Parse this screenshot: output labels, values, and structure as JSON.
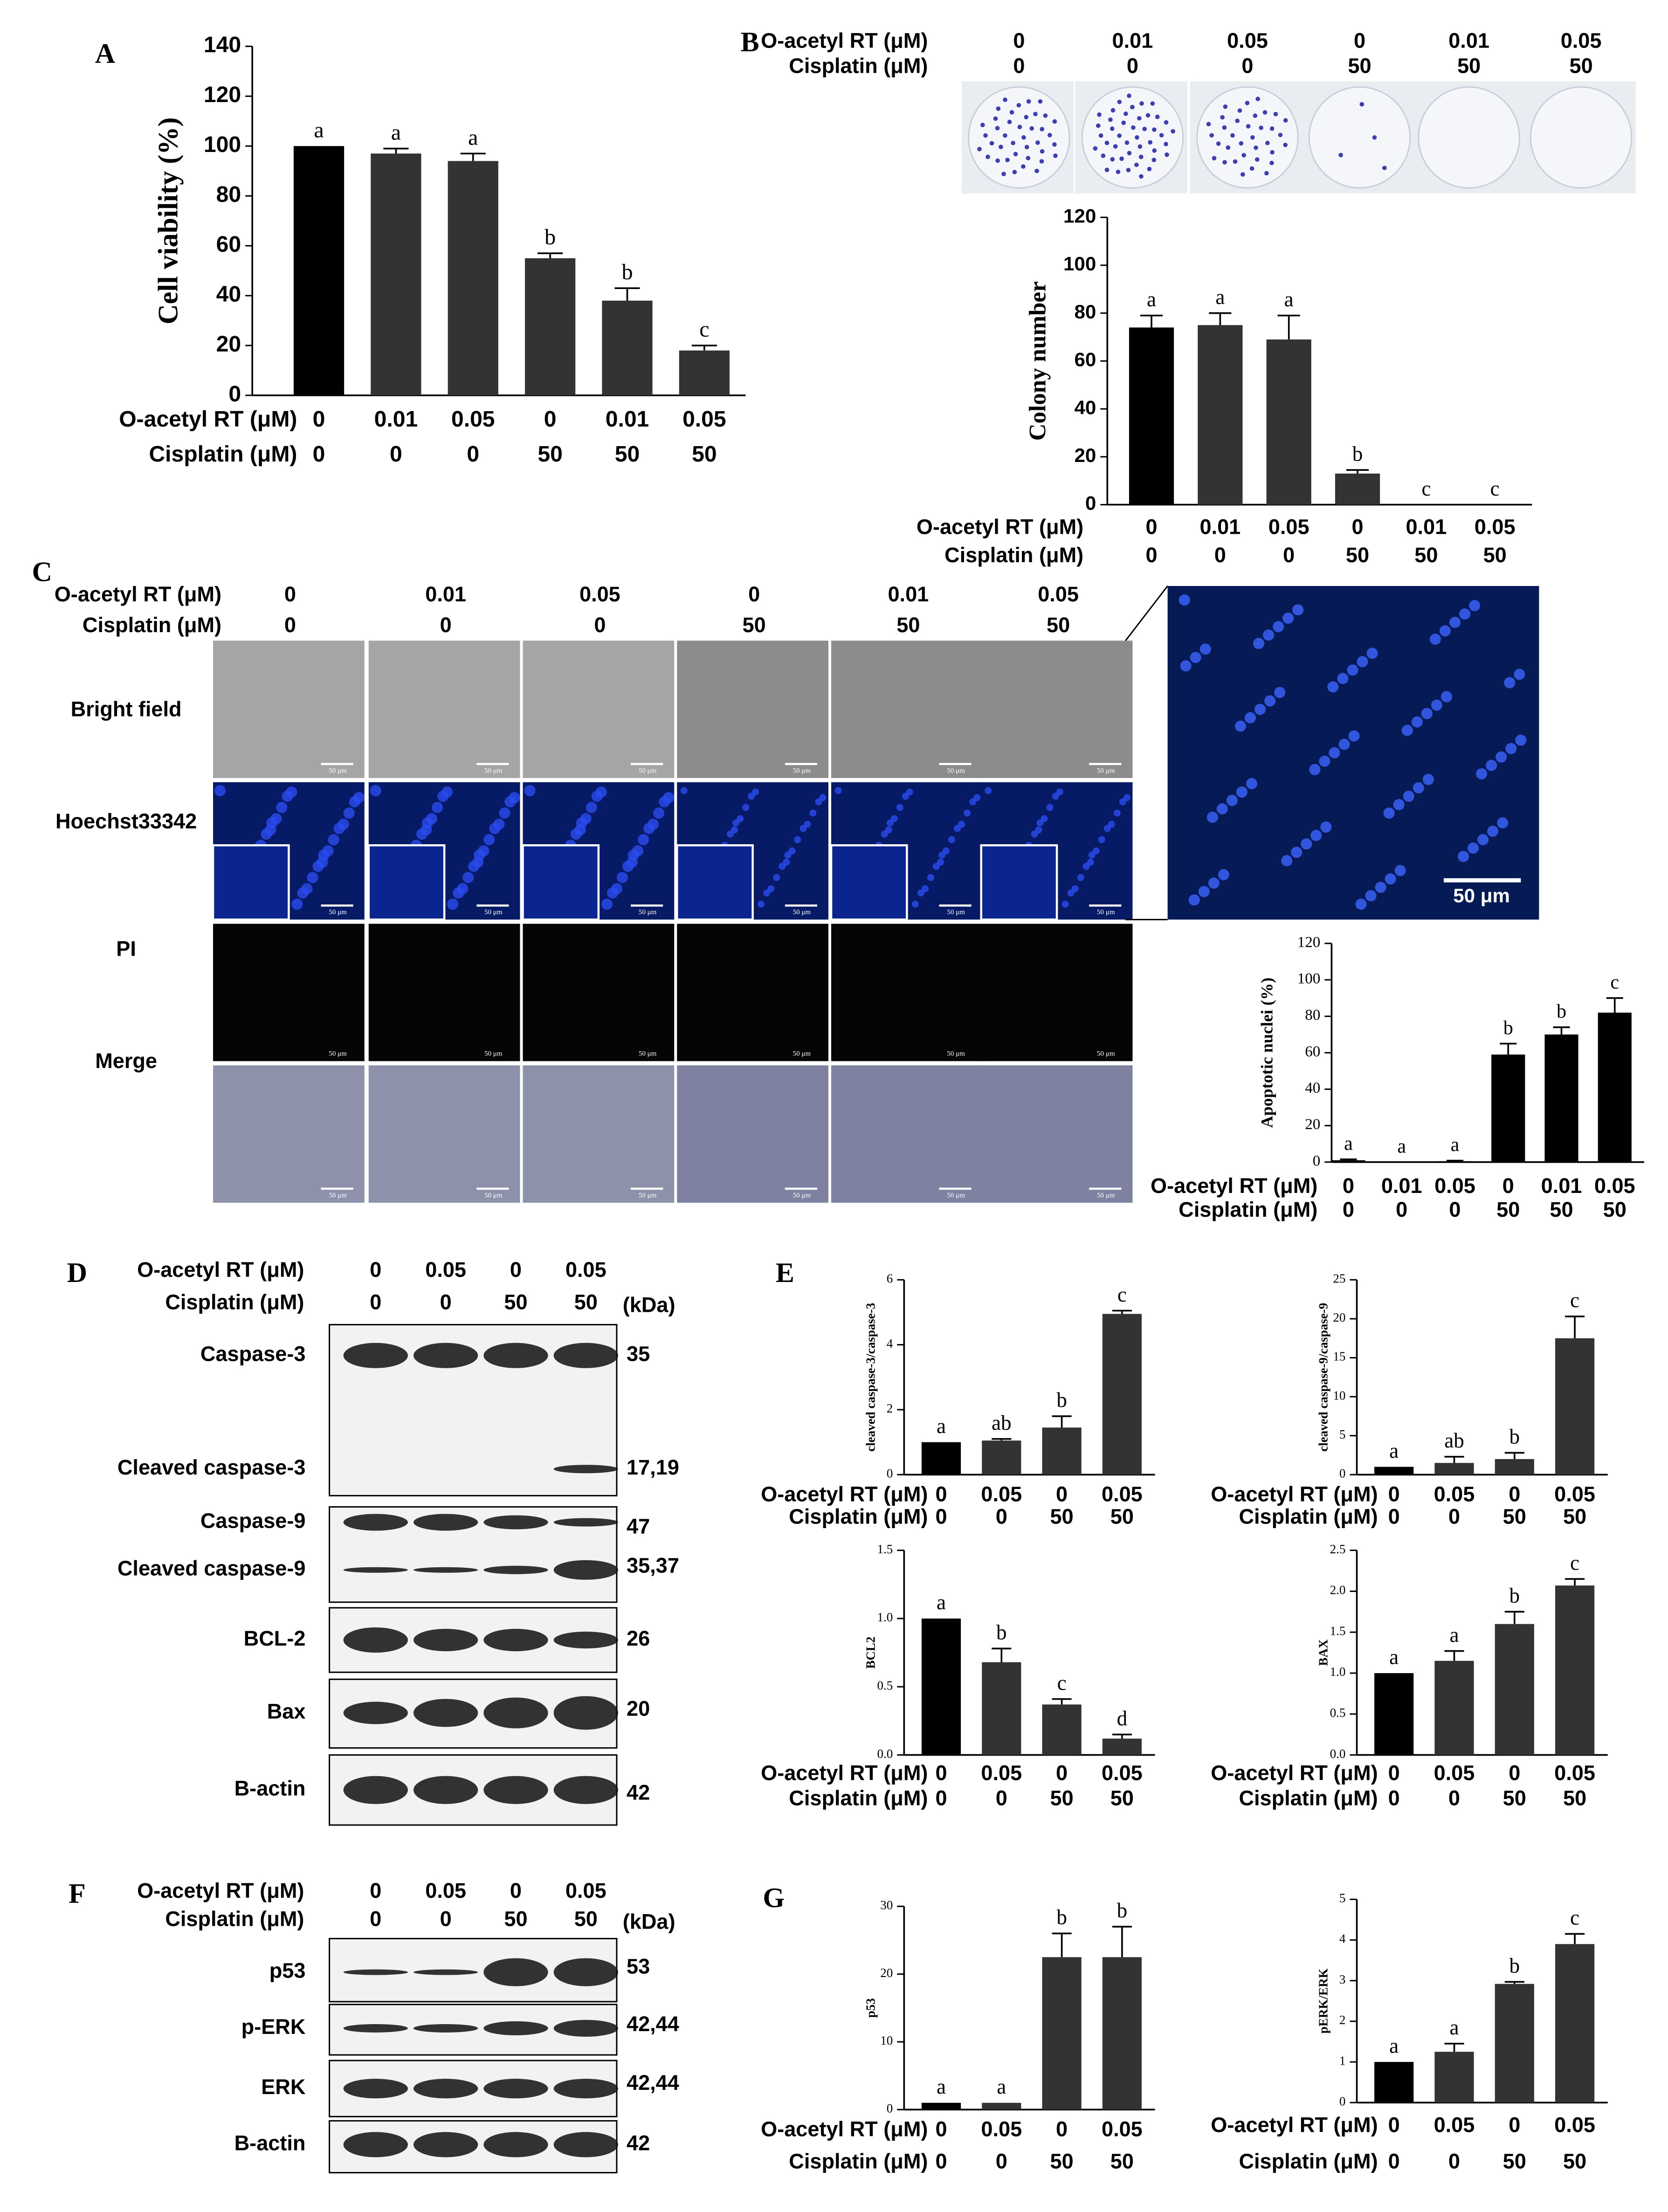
{
  "chart_data": [
    {
      "type": "bar",
      "panel": "A",
      "ylabel": "Cell viability (%)",
      "ylim": [
        0,
        140
      ],
      "yticks": [
        0,
        20,
        40,
        60,
        80,
        100,
        120,
        140
      ],
      "rows": [
        {
          "name": "O-acetyl RT (μM)",
          "labels": [
            "0",
            "0.01",
            "0.05",
            "0",
            "0.01",
            "0.05"
          ]
        },
        {
          "name": "Cisplatin (μM)",
          "labels": [
            "0",
            "0",
            "0",
            "50",
            "50",
            "50"
          ]
        }
      ],
      "values": [
        100,
        97,
        94,
        55,
        38,
        18
      ],
      "errors": [
        0,
        2,
        3,
        2,
        5,
        2
      ],
      "annotations": [
        "a",
        "a",
        "a",
        "b",
        "b",
        "c"
      ],
      "colors": [
        "#000000",
        "#333333",
        "#333333",
        "#333333",
        "#333333",
        "#333333"
      ]
    },
    {
      "type": "bar",
      "panel": "B",
      "ylabel": "Colony number",
      "ylim": [
        0,
        120
      ],
      "yticks": [
        0,
        20,
        40,
        60,
        80,
        100,
        120
      ],
      "rows": [
        {
          "name": "O-acetyl RT (μM)",
          "labels": [
            "0",
            "0.01",
            "0.05",
            "0",
            "0.01",
            "0.05"
          ]
        },
        {
          "name": "Cisplatin (μM)",
          "labels": [
            "0",
            "0",
            "0",
            "50",
            "50",
            "50"
          ]
        }
      ],
      "values": [
        74,
        75,
        69,
        13,
        0,
        0
      ],
      "errors": [
        5,
        5,
        10,
        1.5,
        0,
        0
      ],
      "annotations": [
        "a",
        "a",
        "a",
        "b",
        "c",
        "c"
      ],
      "colors": [
        "#000000",
        "#333333",
        "#333333",
        "#333333",
        "#333333",
        "#333333"
      ]
    },
    {
      "type": "bar",
      "panel": "C",
      "ylabel": "Apoptotic nuclei (%)",
      "ylim": [
        0,
        120
      ],
      "yticks": [
        0,
        20,
        40,
        60,
        80,
        100,
        120
      ],
      "rows": [
        {
          "name": "O-acetyl RT (μM)",
          "labels": [
            "0",
            "0.01",
            "0.05",
            "0",
            "0.01",
            "0.05"
          ]
        },
        {
          "name": "Cisplatin (μM)",
          "labels": [
            "0",
            "0",
            "0",
            "50",
            "50",
            "50"
          ]
        }
      ],
      "values": [
        1,
        0,
        0.5,
        59,
        70,
        82
      ],
      "errors": [
        0.5,
        0,
        0.3,
        6,
        4,
        8
      ],
      "annotations": [
        "a",
        "a",
        "a",
        "b",
        "b",
        "c"
      ],
      "colors": [
        "#000000",
        "#000000",
        "#000000",
        "#000000",
        "#000000",
        "#000000"
      ]
    },
    {
      "type": "bar",
      "panel": "E",
      "ylabel": "cleaved caspase-3/caspase-3",
      "ylim": [
        0,
        6
      ],
      "yticks": [
        0,
        2,
        4,
        6
      ],
      "rows": [
        {
          "name": "O-acetyl RT (μM)",
          "labels": [
            "0",
            "0.05",
            "0",
            "0.05"
          ]
        },
        {
          "name": "Cisplatin (μM)",
          "labels": [
            "0",
            "0",
            "50",
            "50"
          ]
        }
      ],
      "values": [
        1,
        1.05,
        1.45,
        4.95
      ],
      "errors": [
        0,
        0.05,
        0.35,
        0.1
      ],
      "annotations": [
        "a",
        "ab",
        "b",
        "c"
      ],
      "colors": [
        "#000000",
        "#333333",
        "#333333",
        "#333333"
      ]
    },
    {
      "type": "bar",
      "ylabel": "cleaved caspase-9/caspase-9",
      "ylim": [
        0,
        25
      ],
      "yticks": [
        0,
        5,
        10,
        15,
        20,
        25
      ],
      "rows": [
        {
          "name": "O-acetyl RT (μM)",
          "labels": [
            "0",
            "0.05",
            "0",
            "0.05"
          ]
        },
        {
          "name": "Cisplatin (μM)",
          "labels": [
            "0",
            "0",
            "50",
            "50"
          ]
        }
      ],
      "values": [
        1,
        1.5,
        2,
        17.5
      ],
      "errors": [
        0,
        0.8,
        0.8,
        2.8
      ],
      "annotations": [
        "a",
        "ab",
        "b",
        "c"
      ],
      "colors": [
        "#000000",
        "#333333",
        "#333333",
        "#333333"
      ]
    },
    {
      "type": "bar",
      "ylabel": "BCL2",
      "ylim": [
        0,
        1.5
      ],
      "yticks": [
        {
          "value": 0,
          "label": "0.0"
        },
        0.5,
        {
          "value": 1,
          "label": "1.0"
        },
        1.5
      ],
      "rows": [
        {
          "name": "O-acetyl RT (μM)",
          "labels": [
            "0",
            "0.05",
            "0",
            "0.05"
          ]
        },
        {
          "name": "Cisplatin (μM)",
          "labels": [
            "0",
            "0",
            "50",
            "50"
          ]
        }
      ],
      "values": [
        1,
        0.68,
        0.37,
        0.12
      ],
      "errors": [
        0,
        0.1,
        0.04,
        0.03
      ],
      "annotations": [
        "a",
        "b",
        "c",
        "d"
      ],
      "colors": [
        "#000000",
        "#333333",
        "#333333",
        "#333333"
      ]
    },
    {
      "type": "bar",
      "ylabel": "BAX",
      "ylim": [
        0,
        2.5
      ],
      "yticks": [
        {
          "value": 0,
          "label": "0.0"
        },
        0.5,
        {
          "value": 1,
          "label": "1.0"
        },
        1.5,
        {
          "value": 2,
          "label": "2.0"
        },
        2.5
      ],
      "rows": [
        {
          "name": "O-acetyl RT (μM)",
          "labels": [
            "0",
            "0.05",
            "0",
            "0.05"
          ]
        },
        {
          "name": "Cisplatin (μM)",
          "labels": [
            "0",
            "0",
            "50",
            "50"
          ]
        }
      ],
      "values": [
        1,
        1.15,
        1.6,
        2.07
      ],
      "errors": [
        0,
        0.12,
        0.15,
        0.08
      ],
      "annotations": [
        "a",
        "a",
        "b",
        "c"
      ],
      "colors": [
        "#000000",
        "#333333",
        "#333333",
        "#333333"
      ]
    },
    {
      "type": "bar",
      "panel": "G",
      "ylabel": "p53",
      "ylim": [
        0,
        30
      ],
      "yticks": [
        0,
        10,
        20,
        30
      ],
      "rows": [
        {
          "name": "O-acetyl RT (μM)",
          "labels": [
            "0",
            "0.05",
            "0",
            "0.05"
          ]
        },
        {
          "name": "Cisplatin (μM)",
          "labels": [
            "0",
            "0",
            "50",
            "50"
          ]
        }
      ],
      "values": [
        1,
        1,
        22.5,
        22.5
      ],
      "errors": [
        0,
        0,
        3.5,
        4.5
      ],
      "annotations": [
        "a",
        "a",
        "b",
        "b"
      ],
      "colors": [
        "#000000",
        "#333333",
        "#333333",
        "#333333"
      ]
    },
    {
      "type": "bar",
      "ylabel": "pERK/ERK",
      "ylim": [
        0,
        5
      ],
      "yticks": [
        0,
        1,
        2,
        3,
        4,
        5
      ],
      "rows": [
        {
          "name": "O-acetyl RT (μM)",
          "labels": [
            "0",
            "0.05",
            "0",
            "0.05"
          ]
        },
        {
          "name": "Cisplatin (μM)",
          "labels": [
            "0",
            "0",
            "50",
            "50"
          ]
        }
      ],
      "values": [
        1,
        1.25,
        2.92,
        3.9
      ],
      "errors": [
        0,
        0.2,
        0.05,
        0.25
      ],
      "annotations": [
        "a",
        "a",
        "b",
        "c"
      ],
      "colors": [
        "#000000",
        "#333333",
        "#333333",
        "#333333"
      ]
    }
  ],
  "plates": {
    "rows": [
      {
        "name": "O-acetyl RT (μM)",
        "labels": [
          "0",
          "0.01",
          "0.05",
          "0",
          "0.01",
          "0.05"
        ]
      },
      {
        "name": "Cisplatin (μM)",
        "labels": [
          "0",
          "0",
          "0",
          "50",
          "50",
          "50"
        ]
      }
    ]
  },
  "imaging": {
    "panel": "C",
    "rows": [
      {
        "name": "O-acetyl RT (μM)",
        "labels": [
          "0",
          "0.01",
          "0.05",
          "0",
          "0.01",
          "0.05"
        ]
      },
      {
        "name": "Cisplatin (μM)",
        "labels": [
          "0",
          "0",
          "0",
          "50",
          "50",
          "50"
        ]
      }
    ],
    "channels": [
      "Bright field",
      "Hoechst33342",
      "PI",
      "Merge"
    ],
    "scale_bar": "50 μm"
  },
  "blot_d": {
    "panel": "D",
    "unit": "(kDa)",
    "rows": [
      {
        "name": "O-acetyl RT (μM)",
        "labels": [
          "0",
          "0.05",
          "0",
          "0.05"
        ]
      },
      {
        "name": "Cisplatin (μM)",
        "labels": [
          "0",
          "0",
          "50",
          "50"
        ]
      }
    ],
    "bands": [
      {
        "label": "Caspase-3",
        "kda": "35"
      },
      {
        "label": "Cleaved caspase-3",
        "kda": "17,19"
      },
      {
        "label": "Caspase-9",
        "kda": "47"
      },
      {
        "label": "Cleaved caspase-9",
        "kda": "35,37"
      },
      {
        "label": "BCL-2",
        "kda": "26"
      },
      {
        "label": "Bax",
        "kda": "20"
      },
      {
        "label": "B-actin",
        "kda": "42"
      }
    ]
  },
  "blot_f": {
    "panel": "F",
    "unit": "(kDa)",
    "rows": [
      {
        "name": "O-acetyl RT (μM)",
        "labels": [
          "0",
          "0.05",
          "0",
          "0.05"
        ]
      },
      {
        "name": "Cisplatin (μM)",
        "labels": [
          "0",
          "0",
          "50",
          "50"
        ]
      }
    ],
    "bands": [
      {
        "label": "p53",
        "kda": "53"
      },
      {
        "label": "p-ERK",
        "kda": "42,44"
      },
      {
        "label": "ERK",
        "kda": "42,44"
      },
      {
        "label": "B-actin",
        "kda": "42"
      }
    ]
  }
}
